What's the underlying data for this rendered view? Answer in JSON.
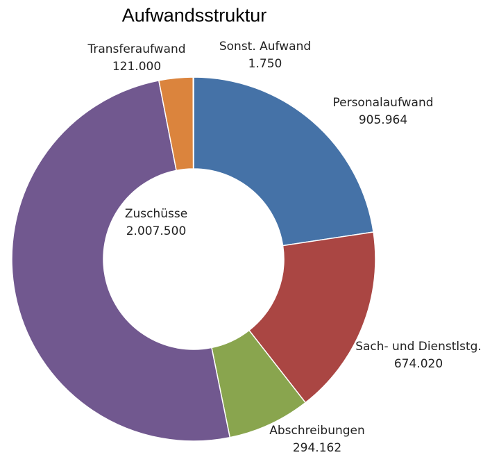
{
  "chart_data": {
    "type": "donut",
    "title": "Aufwandsstruktur",
    "categories": [
      "Personalaufwand",
      "Sach- und Dienstlstg.",
      "Abschreibungen",
      "Zuschüsse",
      "Transferaufwand",
      "Sonst. Aufwand"
    ],
    "values": [
      905964,
      674020,
      294162,
      2007500,
      121000,
      1750
    ],
    "value_labels": [
      "905.964",
      "674.020",
      "294.162",
      "2.007.500",
      "121.000",
      "1.750"
    ],
    "colors": [
      "#4572a7",
      "#aa4643",
      "#89a54e",
      "#71588f",
      "#db843d",
      "#4198af"
    ]
  }
}
